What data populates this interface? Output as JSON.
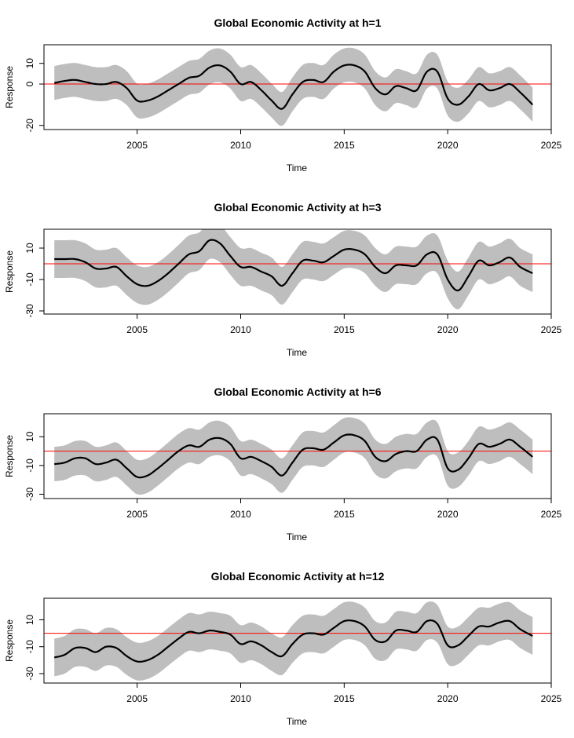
{
  "chart_data": [
    {
      "type": "line",
      "title": "Global Economic Activity at h=1",
      "xlabel": "Time",
      "ylabel": "Response",
      "xlim": [
        2000.5,
        2025
      ],
      "ylim": [
        -22,
        19
      ],
      "xticks": [
        2005,
        2010,
        2015,
        2020,
        2025
      ],
      "yticks": [
        -20,
        0,
        10
      ],
      "hline": 0,
      "band_halfwidth": 8.2,
      "series": [
        {
          "x": [
            2001.0,
            2001.5,
            2002.0,
            2002.5,
            2003.0,
            2003.5,
            2004.0,
            2004.5,
            2005.0,
            2005.5,
            2006.0,
            2006.5,
            2007.0,
            2007.5,
            2008.0,
            2008.5,
            2009.0,
            2009.5,
            2010.0,
            2010.5,
            2011.0,
            2011.5,
            2012.0,
            2012.5,
            2013.0,
            2013.5,
            2014.0,
            2014.5,
            2015.0,
            2015.5,
            2016.0,
            2016.5,
            2017.0,
            2017.5,
            2018.0,
            2018.5,
            2019.0,
            2019.5,
            2020.0,
            2020.5,
            2021.0,
            2021.5,
            2022.0,
            2022.5,
            2023.0,
            2023.5,
            2024.1
          ],
          "y": [
            0.5,
            1.5,
            2,
            1,
            0,
            0,
            1,
            -2,
            -8,
            -8,
            -6,
            -3,
            0,
            3,
            4,
            8,
            9,
            6,
            0,
            1,
            -3,
            -8,
            -12,
            -5,
            1,
            2,
            1,
            6,
            9,
            9,
            6,
            -2,
            -5,
            -1,
            -2,
            -3,
            6,
            6,
            -7,
            -10,
            -6,
            0,
            -3,
            -2,
            0,
            -4,
            -10
          ]
        }
      ]
    },
    {
      "type": "line",
      "title": "Global Economic Activity at h=3",
      "xlabel": "Time",
      "ylabel": "Response",
      "xlim": [
        2000.5,
        2025
      ],
      "ylim": [
        -32,
        22
      ],
      "xticks": [
        2005,
        2010,
        2015,
        2020,
        2025
      ],
      "yticks": [
        -30,
        -10,
        10
      ],
      "hline": 0,
      "band_halfwidth": 12,
      "series": [
        {
          "x": [
            2001.0,
            2001.5,
            2002.0,
            2002.5,
            2003.0,
            2003.5,
            2004.0,
            2004.5,
            2005.0,
            2005.5,
            2006.0,
            2006.5,
            2007.0,
            2007.5,
            2008.0,
            2008.5,
            2009.0,
            2009.5,
            2010.0,
            2010.5,
            2011.0,
            2011.5,
            2012.0,
            2012.5,
            2013.0,
            2013.5,
            2014.0,
            2014.5,
            2015.0,
            2015.5,
            2016.0,
            2016.5,
            2017.0,
            2017.5,
            2018.0,
            2018.5,
            2019.0,
            2019.5,
            2020.0,
            2020.5,
            2021.0,
            2021.5,
            2022.0,
            2022.5,
            2023.0,
            2023.5,
            2024.1
          ],
          "y": [
            3,
            3,
            3,
            1,
            -3,
            -3,
            -2,
            -8,
            -13,
            -14,
            -11,
            -6,
            0,
            6,
            8,
            15,
            13,
            5,
            -2,
            -2,
            -5,
            -8,
            -14,
            -6,
            2,
            2,
            1,
            5,
            9,
            9,
            6,
            -2,
            -6,
            -1,
            -1,
            -1,
            6,
            6,
            -10,
            -17,
            -8,
            2,
            -1,
            1,
            4,
            -2,
            -6
          ]
        }
      ]
    },
    {
      "type": "line",
      "title": "Global Economic Activity at h=6",
      "xlabel": "Time",
      "ylabel": "Response",
      "xlim": [
        2000.5,
        2025
      ],
      "ylim": [
        -33,
        26
      ],
      "xticks": [
        2005,
        2010,
        2015,
        2020,
        2025
      ],
      "yticks": [
        -30,
        -10,
        10
      ],
      "hline": 0,
      "band_halfwidth": 12,
      "series": [
        {
          "x": [
            2001.0,
            2001.5,
            2002.0,
            2002.5,
            2003.0,
            2003.5,
            2004.0,
            2004.5,
            2005.0,
            2005.5,
            2006.0,
            2006.5,
            2007.0,
            2007.5,
            2008.0,
            2008.5,
            2009.0,
            2009.5,
            2010.0,
            2010.5,
            2011.0,
            2011.5,
            2012.0,
            2012.5,
            2013.0,
            2013.5,
            2014.0,
            2014.5,
            2015.0,
            2015.5,
            2016.0,
            2016.5,
            2017.0,
            2017.5,
            2018.0,
            2018.5,
            2019.0,
            2019.5,
            2020.0,
            2020.5,
            2021.0,
            2021.5,
            2022.0,
            2022.5,
            2023.0,
            2023.5,
            2024.1
          ],
          "y": [
            -9,
            -8,
            -5,
            -5,
            -9,
            -8,
            -6,
            -12,
            -18,
            -17,
            -12,
            -6,
            0,
            4,
            3,
            8,
            9,
            5,
            -5,
            -4,
            -7,
            -11,
            -17,
            -8,
            1,
            2,
            1,
            6,
            11,
            11,
            7,
            -4,
            -7,
            -2,
            0,
            0,
            8,
            8,
            -12,
            -13,
            -5,
            5,
            3,
            5,
            8,
            3,
            -4
          ]
        }
      ]
    },
    {
      "type": "line",
      "title": "Global Economic Activity at h=12",
      "xlabel": "Time",
      "ylabel": "Response",
      "xlim": [
        2000.5,
        2025
      ],
      "ylim": [
        -37,
        26
      ],
      "xticks": [
        2005,
        2010,
        2015,
        2020,
        2025
      ],
      "yticks": [
        -30,
        -10,
        10
      ],
      "hline": 0,
      "band_halfwidth": 14,
      "series": [
        {
          "x": [
            2001.0,
            2001.5,
            2002.0,
            2002.5,
            2003.0,
            2003.5,
            2004.0,
            2004.5,
            2005.0,
            2005.5,
            2006.0,
            2006.5,
            2007.0,
            2007.5,
            2008.0,
            2008.5,
            2009.0,
            2009.5,
            2010.0,
            2010.5,
            2011.0,
            2011.5,
            2012.0,
            2012.5,
            2013.0,
            2013.5,
            2014.0,
            2014.5,
            2015.0,
            2015.5,
            2016.0,
            2016.5,
            2017.0,
            2017.5,
            2018.0,
            2018.5,
            2019.0,
            2019.5,
            2020.0,
            2020.5,
            2021.0,
            2021.5,
            2022.0,
            2022.5,
            2023.0,
            2023.5,
            2024.1
          ],
          "y": [
            -18,
            -16,
            -11,
            -11,
            -14,
            -10,
            -11,
            -17,
            -21,
            -20,
            -16,
            -10,
            -4,
            1,
            0,
            2,
            1,
            -1,
            -8,
            -6,
            -9,
            -14,
            -17,
            -8,
            -1,
            0,
            -1,
            4,
            9,
            9,
            5,
            -5,
            -6,
            2,
            2,
            1,
            9,
            7,
            -9,
            -9,
            -2,
            5,
            5,
            8,
            9,
            3,
            -2
          ]
        }
      ]
    }
  ],
  "colors": {
    "line": "#000000",
    "band": "#bebebe",
    "zero_line": "#ff0000",
    "frame": "#000000"
  }
}
